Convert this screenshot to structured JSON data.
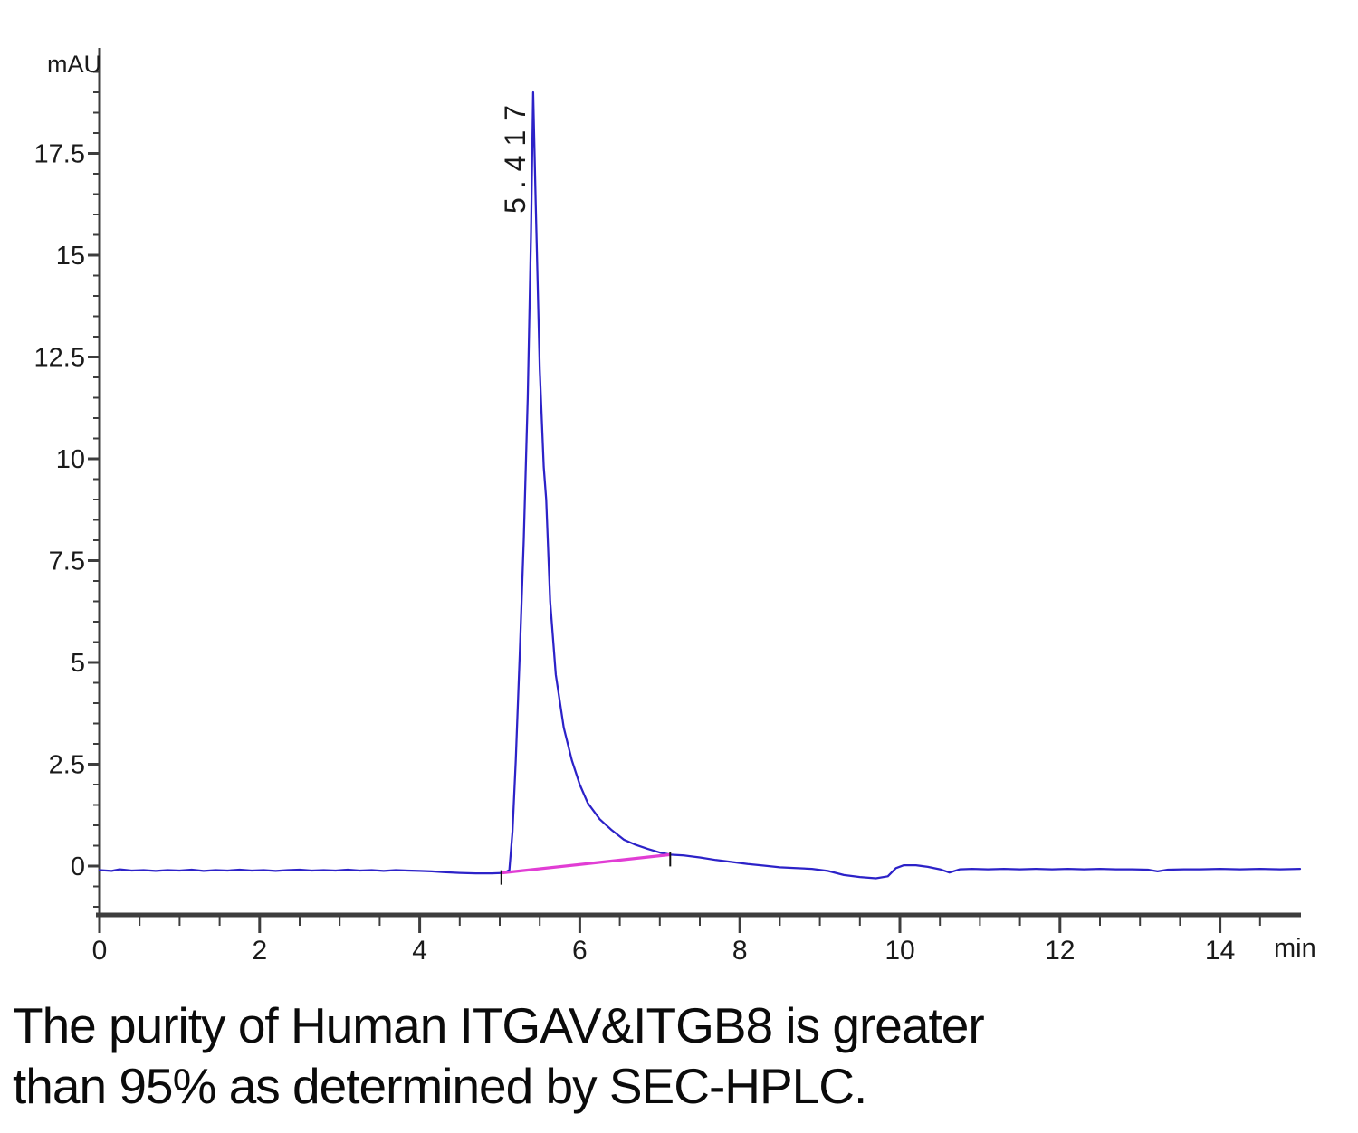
{
  "figure": {
    "caption_line1": "The purity of Human ITGAV&ITGB8 is greater",
    "caption_line2": "than 95% as determined by SEC-HPLC."
  },
  "chart_data": {
    "type": "line",
    "title": "",
    "xlabel": "min",
    "ylabel": "mAU",
    "xlim": [
      0,
      15
    ],
    "ylim": [
      -1.25,
      20
    ],
    "grid": false,
    "legend": "none",
    "x_major_ticks": [
      0,
      2,
      4,
      6,
      8,
      10,
      12,
      14
    ],
    "x_minor_tick_step": 0.5,
    "y_major_ticks": [
      0,
      2.5,
      5,
      7.5,
      10,
      12.5,
      15,
      17.5
    ],
    "y_minor_tick_step": 0.5,
    "colors": {
      "trace": "#2c22c8",
      "integration_baseline": "#e13dd4",
      "axis": "#3d3d3d",
      "text": "#1a1a1a"
    },
    "peaks": [
      {
        "retention_time_min": 5.417,
        "label": "5.417",
        "height_mAU": 19.0
      }
    ],
    "integration_marks_min": [
      5.02,
      7.13
    ],
    "series": [
      {
        "name": "UV absorbance trace",
        "points": [
          [
            0.0,
            -0.1
          ],
          [
            0.15,
            -0.12
          ],
          [
            0.25,
            -0.08
          ],
          [
            0.4,
            -0.11
          ],
          [
            0.55,
            -0.1
          ],
          [
            0.7,
            -0.12
          ],
          [
            0.85,
            -0.1
          ],
          [
            1.0,
            -0.11
          ],
          [
            1.15,
            -0.09
          ],
          [
            1.3,
            -0.12
          ],
          [
            1.45,
            -0.1
          ],
          [
            1.6,
            -0.11
          ],
          [
            1.75,
            -0.09
          ],
          [
            1.9,
            -0.11
          ],
          [
            2.05,
            -0.1
          ],
          [
            2.2,
            -0.12
          ],
          [
            2.35,
            -0.1
          ],
          [
            2.5,
            -0.09
          ],
          [
            2.65,
            -0.11
          ],
          [
            2.8,
            -0.1
          ],
          [
            2.95,
            -0.11
          ],
          [
            3.1,
            -0.09
          ],
          [
            3.25,
            -0.11
          ],
          [
            3.4,
            -0.1
          ],
          [
            3.55,
            -0.12
          ],
          [
            3.7,
            -0.1
          ],
          [
            3.85,
            -0.11
          ],
          [
            4.0,
            -0.12
          ],
          [
            4.15,
            -0.13
          ],
          [
            4.3,
            -0.15
          ],
          [
            4.5,
            -0.17
          ],
          [
            4.7,
            -0.18
          ],
          [
            4.9,
            -0.18
          ],
          [
            5.05,
            -0.17
          ],
          [
            5.12,
            -0.1
          ],
          [
            5.16,
            0.85
          ],
          [
            5.2,
            2.6
          ],
          [
            5.25,
            5.2
          ],
          [
            5.3,
            8.0
          ],
          [
            5.35,
            11.5
          ],
          [
            5.39,
            15.5
          ],
          [
            5.417,
            19.0
          ],
          [
            5.45,
            16.2
          ],
          [
            5.5,
            12.2
          ],
          [
            5.55,
            9.8
          ],
          [
            5.58,
            9.0
          ],
          [
            5.63,
            6.5
          ],
          [
            5.7,
            4.7
          ],
          [
            5.8,
            3.4
          ],
          [
            5.9,
            2.6
          ],
          [
            6.0,
            2.0
          ],
          [
            6.1,
            1.55
          ],
          [
            6.25,
            1.15
          ],
          [
            6.4,
            0.88
          ],
          [
            6.55,
            0.65
          ],
          [
            6.7,
            0.52
          ],
          [
            6.85,
            0.42
          ],
          [
            7.0,
            0.33
          ],
          [
            7.13,
            0.28
          ],
          [
            7.3,
            0.26
          ],
          [
            7.5,
            0.21
          ],
          [
            7.7,
            0.15
          ],
          [
            7.9,
            0.1
          ],
          [
            8.1,
            0.05
          ],
          [
            8.3,
            0.01
          ],
          [
            8.5,
            -0.03
          ],
          [
            8.7,
            -0.05
          ],
          [
            8.9,
            -0.07
          ],
          [
            9.1,
            -0.12
          ],
          [
            9.3,
            -0.22
          ],
          [
            9.5,
            -0.27
          ],
          [
            9.7,
            -0.3
          ],
          [
            9.85,
            -0.25
          ],
          [
            9.95,
            -0.05
          ],
          [
            10.05,
            0.02
          ],
          [
            10.2,
            0.02
          ],
          [
            10.35,
            -0.02
          ],
          [
            10.5,
            -0.08
          ],
          [
            10.62,
            -0.16
          ],
          [
            10.75,
            -0.08
          ],
          [
            10.9,
            -0.07
          ],
          [
            11.1,
            -0.08
          ],
          [
            11.3,
            -0.07
          ],
          [
            11.5,
            -0.08
          ],
          [
            11.7,
            -0.07
          ],
          [
            11.9,
            -0.08
          ],
          [
            12.1,
            -0.07
          ],
          [
            12.3,
            -0.08
          ],
          [
            12.5,
            -0.07
          ],
          [
            12.7,
            -0.08
          ],
          [
            12.9,
            -0.08
          ],
          [
            13.1,
            -0.09
          ],
          [
            13.22,
            -0.13
          ],
          [
            13.35,
            -0.09
          ],
          [
            13.55,
            -0.08
          ],
          [
            13.75,
            -0.08
          ],
          [
            14.0,
            -0.07
          ],
          [
            14.25,
            -0.08
          ],
          [
            14.5,
            -0.07
          ],
          [
            14.75,
            -0.08
          ],
          [
            15.0,
            -0.07
          ]
        ]
      },
      {
        "name": "integration baseline",
        "points": [
          [
            5.02,
            -0.17
          ],
          [
            7.13,
            0.28
          ]
        ]
      }
    ]
  }
}
